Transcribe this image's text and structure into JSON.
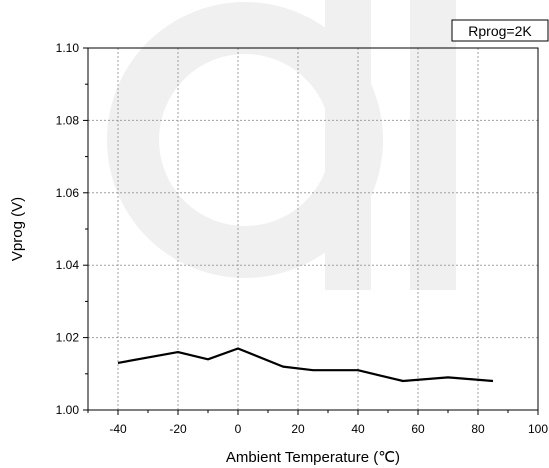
{
  "chart_data": {
    "type": "line",
    "xlabel": "Ambient Temperature (℃)",
    "ylabel": "Vprog (V)",
    "xlim": [
      -50,
      100
    ],
    "ylim": [
      1.0,
      1.1
    ],
    "xticks": [
      -40,
      -20,
      0,
      20,
      40,
      60,
      80,
      100
    ],
    "yticks": [
      1.0,
      1.02,
      1.04,
      1.06,
      1.08,
      1.1
    ],
    "xtick_labels": [
      "-40",
      "-20",
      "0",
      "20",
      "40",
      "60",
      "80",
      "100"
    ],
    "ytick_labels": [
      "1.00",
      "1.02",
      "1.04",
      "1.06",
      "1.08",
      "1.10"
    ],
    "grid": true,
    "legend_text": "Rprog=2K",
    "legend_position": "top-right",
    "series": [
      {
        "x": [
          -40,
          -20,
          -10,
          0,
          15,
          25,
          40,
          55,
          70,
          85
        ],
        "y": [
          1.013,
          1.016,
          1.014,
          1.017,
          1.012,
          1.011,
          1.011,
          1.008,
          1.009,
          1.008
        ],
        "color": "#000000"
      }
    ],
    "watermark_color": "#f0f0f0"
  }
}
